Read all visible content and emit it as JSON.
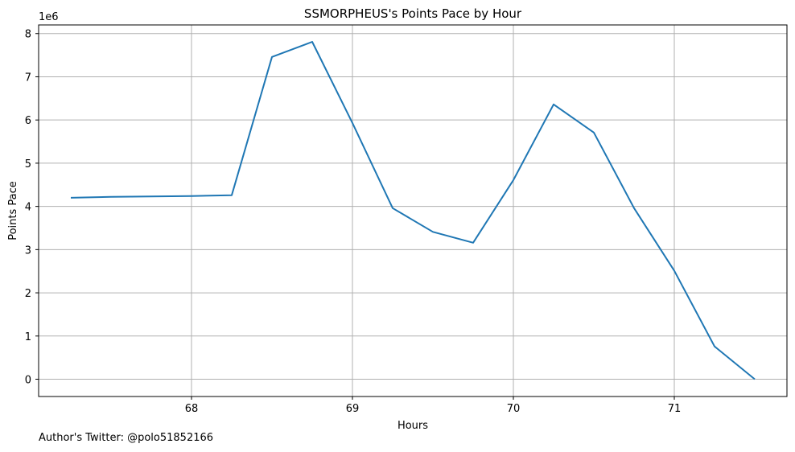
{
  "chart_data": {
    "type": "line",
    "title": "SSMORPHEUS's Points Pace by Hour",
    "xlabel": "Hours",
    "ylabel": "Points Pace",
    "y_offset_label": "1e6",
    "x": [
      67.25,
      67.5,
      67.75,
      68.0,
      68.25,
      68.5,
      68.75,
      69.0,
      69.25,
      69.5,
      69.75,
      70.0,
      70.25,
      70.5,
      70.75,
      71.0,
      71.25,
      71.5
    ],
    "series": [
      {
        "color": "#1f77b4",
        "values": [
          4200000,
          4220000,
          4230000,
          4240000,
          4260000,
          7460000,
          7810000,
          5930000,
          3960000,
          3410000,
          3160000,
          4610000,
          6360000,
          5710000,
          3960000,
          2510000,
          760000,
          0
        ]
      }
    ],
    "xlim": [
      67.05,
      71.7
    ],
    "ylim": [
      -400000,
      8200000
    ],
    "xticks": [
      68,
      69,
      70,
      71
    ],
    "xtick_labels": [
      "68",
      "69",
      "70",
      "71"
    ],
    "yticks": [
      0,
      1000000,
      2000000,
      3000000,
      4000000,
      5000000,
      6000000,
      7000000,
      8000000
    ],
    "ytick_labels": [
      "0",
      "1",
      "2",
      "3",
      "4",
      "5",
      "6",
      "7",
      "8"
    ],
    "grid": true
  },
  "footer": {
    "text": "Author's Twitter: @polo51852166"
  },
  "colors": {
    "grid": "#b0b0b0",
    "axes": "#000000"
  }
}
